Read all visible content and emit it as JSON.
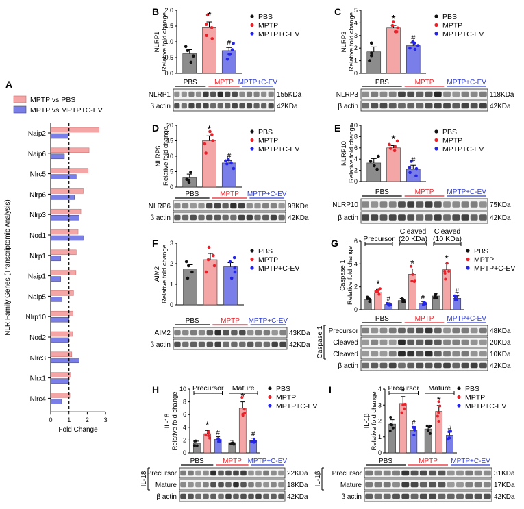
{
  "colors": {
    "pbs": "#8c8c8c",
    "mptp": "#f4a6a6",
    "cev": "#7a7ee8",
    "pbs_dot": "#111111",
    "mptp_dot": "#e8222a",
    "cev_dot": "#2424e6",
    "mptp_line": "#e8222a",
    "cev_line": "#2e3ed0"
  },
  "legend_groups": [
    "PBS",
    "MPTP",
    "MPTP+C-EV"
  ],
  "chart_data": [
    {
      "panel": "A",
      "type": "bar",
      "orientation": "horizontal",
      "title": "",
      "xlabel": "Fold Change",
      "ylabel": "NLR Family Genes (Transcriptomic Analysis)",
      "xlim": [
        0,
        3
      ],
      "xticks": [
        "0",
        "1",
        "2",
        "3"
      ],
      "reference_line": 1,
      "legend": [
        "MPTP vs PBS",
        "MPTP vs MPTP+C-EV"
      ],
      "categories": [
        "Naip2",
        "Naip6",
        "Nlrc5",
        "Nlrp6",
        "Nlrp3",
        "Nod1",
        "Nlrp1",
        "Naip1",
        "Naip5",
        "Nlrp10",
        "Nod2",
        "Nlrc3",
        "Nlrx1",
        "Nlrc4"
      ],
      "series": [
        {
          "name": "MPTP vs PBS",
          "values": [
            2.65,
            2.1,
            2.05,
            1.78,
            1.65,
            1.5,
            1.4,
            1.38,
            1.25,
            1.22,
            1.2,
            1.15,
            1.1,
            1.05
          ]
        },
        {
          "name": "MPTP vs MPTP+C-EV",
          "values": [
            0.95,
            0.75,
            1.4,
            1.3,
            1.55,
            1.78,
            0.55,
            0.55,
            0.62,
            1.0,
            1.0,
            1.55,
            1.0,
            0.6
          ]
        }
      ]
    },
    {
      "panel": "B",
      "type": "bar",
      "ylabel": "Relative fold change",
      "protein": "NLRP1",
      "ylim": [
        0,
        2
      ],
      "yticks": [
        "0.0",
        "0.5",
        "1.0",
        "1.5",
        "2.0"
      ],
      "groups": [
        "PBS",
        "MPTP",
        "MPTP+C-EV"
      ],
      "values": [
        0.62,
        1.45,
        0.72
      ],
      "points": [
        [
          0.35,
          0.55,
          0.72,
          0.85
        ],
        [
          1.2,
          1.45,
          1.55,
          1.85,
          1.1
        ],
        [
          0.45,
          0.6,
          0.75,
          0.95,
          0.6
        ]
      ],
      "errors": [
        0.13,
        0.18,
        0.1
      ],
      "sig": [
        "",
        "*",
        "#"
      ],
      "blot": {
        "target": "NLRP1",
        "target_kda": "155KDa",
        "loading": "β actin",
        "loading_kda": "42KDa"
      }
    },
    {
      "panel": "C",
      "type": "bar",
      "ylabel": "Relative fold change",
      "protein": "NLRP3",
      "ylim": [
        0,
        5
      ],
      "yticks": [
        "0",
        "1",
        "2",
        "3",
        "4",
        "5"
      ],
      "groups": [
        "PBS",
        "MPTP",
        "MPTP+C-EV"
      ],
      "values": [
        1.7,
        3.6,
        2.2
      ],
      "points": [
        [
          1.0,
          1.6,
          2.4,
          1.4
        ],
        [
          3.3,
          3.8,
          4.1,
          3.6,
          3.3
        ],
        [
          2.0,
          2.5,
          2.2,
          1.9,
          2.4
        ]
      ],
      "errors": [
        0.4,
        0.2,
        0.2
      ],
      "sig": [
        "",
        "*",
        "#"
      ],
      "blot": {
        "target": "NLRP3",
        "target_kda": "118KDa",
        "loading": "β actin",
        "loading_kda": "42KDa"
      }
    },
    {
      "panel": "D",
      "type": "bar",
      "ylabel": "Relative fold change",
      "protein": "NLRP6",
      "ylim": [
        0,
        20
      ],
      "yticks": [
        "0",
        "5",
        "10",
        "15",
        "20"
      ],
      "groups": [
        "PBS",
        "MPTP",
        "MPTP+C-EV"
      ],
      "values": [
        3.0,
        15.0,
        7.8
      ],
      "points": [
        [
          1.5,
          4.8,
          2.5,
          2.2
        ],
        [
          11,
          14,
          17,
          18,
          15
        ],
        [
          6,
          7.5,
          8.5,
          9,
          7.8
        ]
      ],
      "errors": [
        1.2,
        1.6,
        0.7
      ],
      "sig": [
        "",
        "*",
        "#"
      ],
      "blot": {
        "target": "NLRP6",
        "target_kda": "98KDa",
        "loading": "β actin",
        "loading_kda": "42KDa"
      }
    },
    {
      "panel": "E",
      "type": "bar",
      "ylabel": "Relative fold change",
      "protein": "NLRP10",
      "ylim": [
        0,
        10
      ],
      "yticks": [
        "0",
        "2",
        "4",
        "6",
        "8",
        "10"
      ],
      "groups": [
        "PBS",
        "MPTP",
        "MPTP+C-EV"
      ],
      "values": [
        3.3,
        6.0,
        2.2
      ],
      "points": [
        [
          2.2,
          4.5,
          3.6,
          2.8
        ],
        [
          5.5,
          6.2,
          6.6,
          5.9,
          7.2
        ],
        [
          1.0,
          2.5,
          3.6,
          1.6,
          2.3
        ]
      ],
      "errors": [
        0.8,
        0.4,
        0.7
      ],
      "sig": [
        "",
        "*",
        "#"
      ],
      "blot": {
        "target": "NLRP10",
        "target_kda": "75KDa",
        "loading": "β actin",
        "loading_kda": "42KDa"
      }
    },
    {
      "panel": "F",
      "type": "bar",
      "ylabel": "Relative fold change",
      "protein": "AIM2",
      "ylim": [
        0,
        3
      ],
      "yticks": [
        "0",
        "1",
        "2",
        "3"
      ],
      "groups": [
        "PBS",
        "MPTP",
        "MPTP+C-EV"
      ],
      "values": [
        1.75,
        2.2,
        1.85
      ],
      "points": [
        [
          1.3,
          1.9,
          2.1,
          1.6
        ],
        [
          1.6,
          2.2,
          2.8,
          2.4,
          1.9
        ],
        [
          1.3,
          1.6,
          2.1,
          2.3,
          1.8
        ]
      ],
      "errors": [
        0.2,
        0.3,
        0.2
      ],
      "sig": [
        "",
        "",
        ""
      ],
      "blot": {
        "target": "AIM2",
        "target_kda": "43KDa",
        "loading": "β actin",
        "loading_kda": "42KDa"
      }
    },
    {
      "panel": "G",
      "type": "bar",
      "ylabel": "Relative fold change",
      "protein": "Caspase 1",
      "ylim": [
        0,
        6
      ],
      "yticks": [
        "0",
        "2",
        "4",
        "6"
      ],
      "subgroups": [
        "Precursor",
        "Cleaved (20 KDa)",
        "Cleaved (10 KDa)"
      ],
      "groups": [
        "PBS",
        "MPTP",
        "MPTP+C-EV"
      ],
      "series": [
        {
          "name": "PBS",
          "values": [
            0.9,
            0.8,
            1.2
          ]
        },
        {
          "name": "MPTP",
          "values": [
            1.5,
            3.1,
            3.5
          ]
        },
        {
          "name": "MPTP+C-EV",
          "values": [
            0.45,
            0.55,
            1.0
          ]
        }
      ],
      "sig": [
        [
          "",
          "*",
          "#"
        ],
        [
          "",
          "*",
          "#"
        ],
        [
          "",
          "*",
          "#"
        ]
      ],
      "blot": {
        "rows": [
          "Precursor",
          "Cleaved",
          "Cleaved"
        ],
        "kdas": [
          "48KDa",
          "20KDa",
          "10KDa"
        ],
        "bracket": "Caspase 1",
        "loading": "β actin",
        "loading_kda": "42KDa"
      }
    },
    {
      "panel": "H",
      "type": "bar",
      "ylabel": "Relative fold change",
      "protein": "IL-18",
      "ylim": [
        0,
        10
      ],
      "yticks": [
        "0",
        "2",
        "4",
        "6",
        "8",
        "10"
      ],
      "subgroups": [
        "Precursor",
        "Mature"
      ],
      "groups": [
        "PBS",
        "MPTP",
        "MPTP+C-EV"
      ],
      "series": [
        {
          "name": "PBS",
          "values": [
            1.5,
            1.6
          ]
        },
        {
          "name": "MPTP",
          "values": [
            3.0,
            7.0
          ]
        },
        {
          "name": "MPTP+C-EV",
          "values": [
            2.1,
            1.9
          ]
        }
      ],
      "sig": [
        [
          "",
          "*",
          "#"
        ],
        [
          "",
          "*",
          "#"
        ]
      ],
      "blot": {
        "rows": [
          "Precursor",
          "Mature"
        ],
        "kdas": [
          "22KDa",
          "18KDa"
        ],
        "bracket": "IL-18",
        "loading": "β actin",
        "loading_kda": "42KDa"
      }
    },
    {
      "panel": "I",
      "type": "bar",
      "ylabel": "Relative fold change",
      "protein": "IL-1β",
      "ylim": [
        0,
        4
      ],
      "yticks": [
        "0",
        "1",
        "2",
        "3",
        "4"
      ],
      "subgroups": [
        "Precursor",
        "Mature"
      ],
      "groups": [
        "PBS",
        "MPTP",
        "MPTP+C-EV"
      ],
      "series": [
        {
          "name": "PBS",
          "values": [
            1.8,
            1.5
          ]
        },
        {
          "name": "MPTP",
          "values": [
            3.1,
            2.6
          ]
        },
        {
          "name": "MPTP+C-EV",
          "values": [
            1.4,
            1.1
          ]
        }
      ],
      "sig": [
        [
          "",
          "*",
          "#"
        ],
        [
          "",
          "*",
          "#"
        ]
      ],
      "blot": {
        "rows": [
          "Precursor",
          "Mature"
        ],
        "kdas": [
          "31KDa",
          "17KDa"
        ],
        "bracket": "IL-1β",
        "loading": "β actin",
        "loading_kda": "42KDa"
      }
    }
  ]
}
